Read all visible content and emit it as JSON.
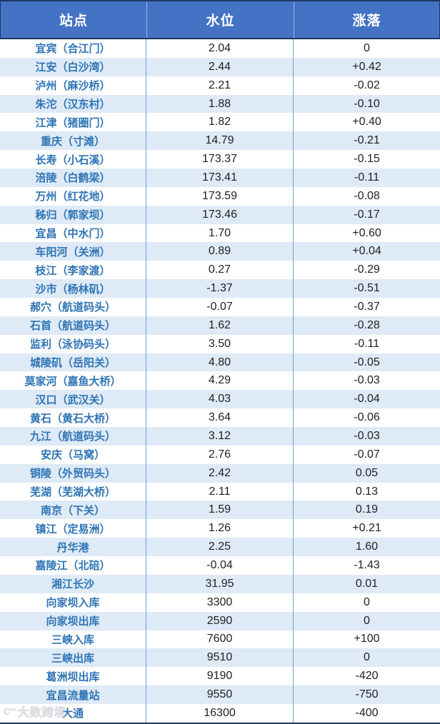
{
  "table": {
    "columns": [
      {
        "label": "站点"
      },
      {
        "label": "水位"
      },
      {
        "label": "涨落"
      }
    ],
    "rows": [
      [
        "宜宾（合江门）",
        "2.04",
        "0"
      ],
      [
        "江安（白沙湾）",
        "2.44",
        "+0.42"
      ],
      [
        "泸州（麻沙桥）",
        "2.21",
        "-0.02"
      ],
      [
        "朱沱（汉东村）",
        "1.88",
        "-0.10"
      ],
      [
        "江津（猪圈门）",
        "1.82",
        "+0.40"
      ],
      [
        "重庆（寸滩）",
        "14.79",
        "-0.21"
      ],
      [
        "长寿（小石溪）",
        "173.37",
        "-0.15"
      ],
      [
        "涪陵（白鹤梁）",
        "173.41",
        "-0.11"
      ],
      [
        "万州（红花地）",
        "173.59",
        "-0.08"
      ],
      [
        "秭归（郭家坝）",
        "173.46",
        "-0.17"
      ],
      [
        "宜昌（中水门）",
        "1.70",
        "+0.60"
      ],
      [
        "车阳河（关洲）",
        "0.89",
        "+0.04"
      ],
      [
        "枝江（李家渡）",
        "0.27",
        "-0.29"
      ],
      [
        "沙市（杨林矶）",
        "-1.37",
        "-0.51"
      ],
      [
        "郝穴（航道码头）",
        "-0.07",
        "-0.37"
      ],
      [
        "石首（航道码头）",
        "1.62",
        "-0.28"
      ],
      [
        "监利（泳协码头）",
        "3.50",
        "-0.11"
      ],
      [
        "城陵矶（岳阳关）",
        "4.80",
        "-0.05"
      ],
      [
        "莫家河（嘉鱼大桥）",
        "4.29",
        "-0.03"
      ],
      [
        "汉口（武汉关）",
        "4.03",
        "-0.04"
      ],
      [
        "黄石（黄石大桥）",
        "3.64",
        "-0.06"
      ],
      [
        "九江（航道码头）",
        "3.12",
        "-0.03"
      ],
      [
        "安庆（马窝）",
        "2.76",
        "-0.07"
      ],
      [
        "铜陵（外贸码头）",
        "2.42",
        "0.05"
      ],
      [
        "芜湖（芜湖大桥）",
        "2.11",
        "0.13"
      ],
      [
        "南京（下关）",
        "1.59",
        "0.19"
      ],
      [
        "镇江（定易洲）",
        "1.26",
        "+0.21"
      ],
      [
        "丹华港",
        "2.25",
        "1.60"
      ],
      [
        "嘉陵江（北碚）",
        "-0.04",
        "-1.43"
      ],
      [
        "湘江长沙",
        "31.95",
        "0.01"
      ],
      [
        "向家坝入库",
        "3300",
        "0"
      ],
      [
        "向家坝出库",
        "2590",
        "0"
      ],
      [
        "三峡入库",
        "7600",
        "+100"
      ],
      [
        "三峡出库",
        "9510",
        "0"
      ],
      [
        "葛洲坝出库",
        "9190",
        "-420"
      ],
      [
        "宜昌流量站",
        "9550",
        "-750"
      ],
      [
        "大通",
        "16300",
        "-400"
      ]
    ]
  },
  "watermark": {
    "logo_text": "C°°",
    "text": "大数跨境"
  },
  "colors": {
    "header_bg": "#4472C4",
    "header_text": "#FFFFFF",
    "border_dark": "#1F3864",
    "row_alt_bg": "#DEEAF6",
    "grid_line": "#6FA0D2",
    "station_text": "#2E74B5",
    "value_text": "#1F1F1F"
  }
}
